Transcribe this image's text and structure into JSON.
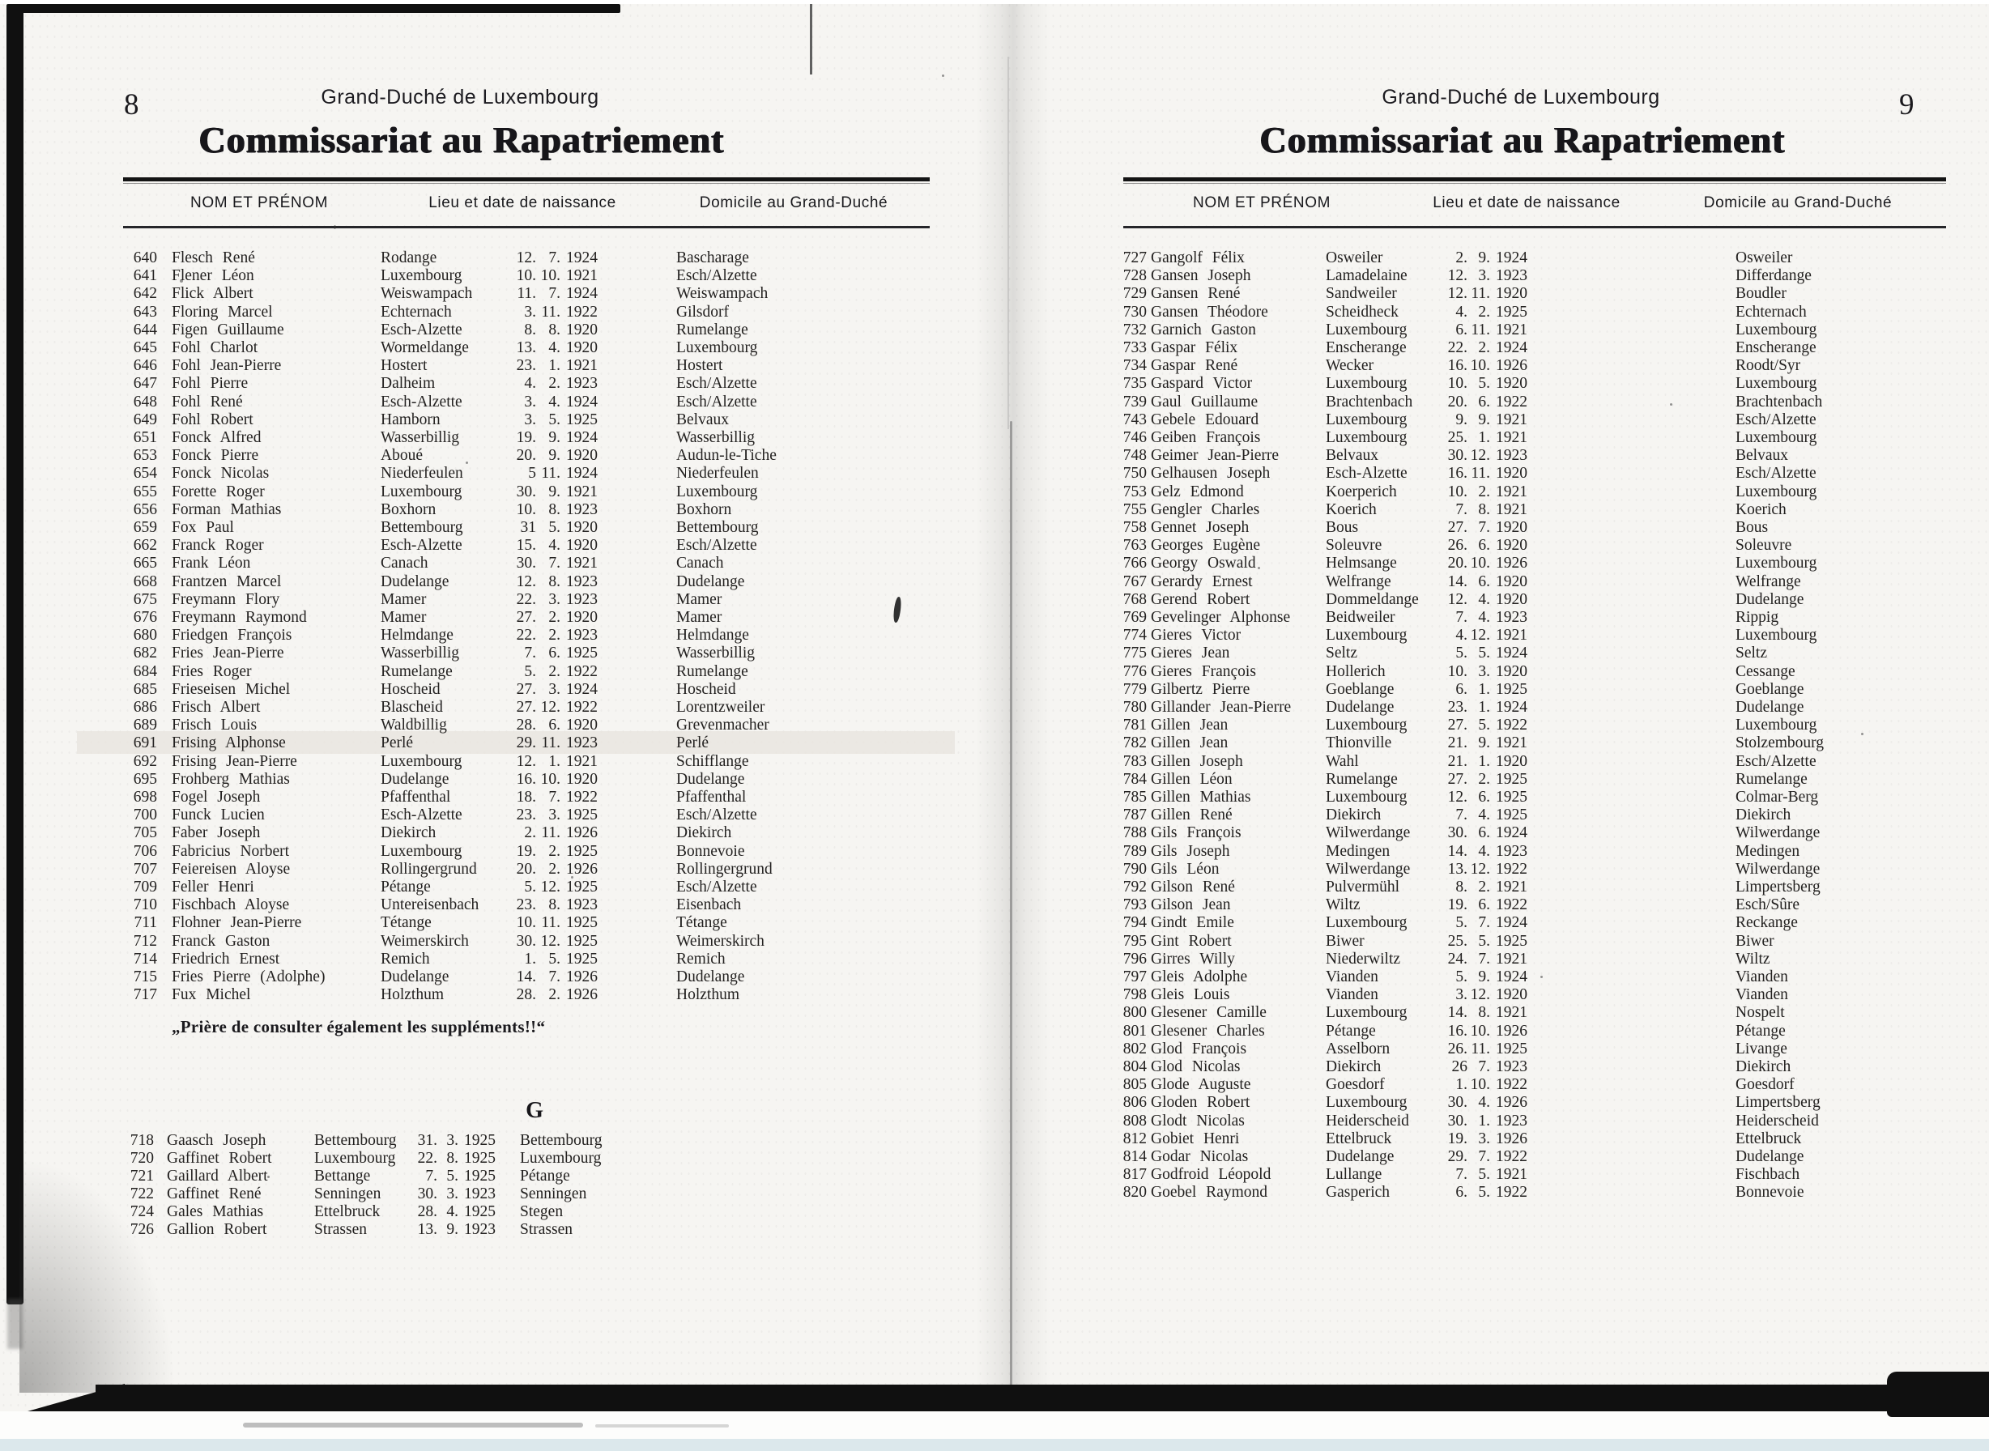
{
  "colors": {
    "paper": "#f6f5f2",
    "ink": "#232120",
    "bar_black": "#101010",
    "highlight": "#e8e5de",
    "edge_blue": "#dce8ec"
  },
  "left_page": {
    "page_number": "8",
    "header_small": "Grand-Duché de Luxembourg",
    "title": "Commissariat au Rapatriement",
    "columns": {
      "name": "NOM ET PRÉNOM",
      "birth": "Lieu et date de naissance",
      "domicile": "Domicile au Grand-Duché"
    },
    "rows": [
      {
        "no": "640",
        "name": "Flesch René",
        "place": "Rodange",
        "d": "12.",
        "m": "7.",
        "y": "1924",
        "dom": "Bascharage"
      },
      {
        "no": "641",
        "name": "Flener Léon",
        "place": "Luxembourg",
        "d": "10.",
        "m": "10.",
        "y": "1921",
        "dom": "Esch/Alzette"
      },
      {
        "no": "642",
        "name": "Flick Albert",
        "place": "Weiswampach",
        "d": "11.",
        "m": "7.",
        "y": "1924",
        "dom": "Weiswampach"
      },
      {
        "no": "643",
        "name": "Floring Marcel",
        "place": "Echternach",
        "d": "3.",
        "m": "11.",
        "y": "1922",
        "dom": "Gilsdorf"
      },
      {
        "no": "644",
        "name": "Figen Guillaume",
        "place": "Esch-Alzette",
        "d": "8.",
        "m": "8.",
        "y": "1920",
        "dom": "Rumelange"
      },
      {
        "no": "645",
        "name": "Fohl Charlot",
        "place": "Wormeldange",
        "d": "13.",
        "m": "4.",
        "y": "1920",
        "dom": "Luxembourg"
      },
      {
        "no": "646",
        "name": "Fohl Jean-Pierre",
        "place": "Hostert",
        "d": "23.",
        "m": "1.",
        "y": "1921",
        "dom": "Hostert"
      },
      {
        "no": "647",
        "name": "Fohl Pierre",
        "place": "Dalheim",
        "d": "4.",
        "m": "2.",
        "y": "1923",
        "dom": "Esch/Alzette"
      },
      {
        "no": "648",
        "name": "Fohl René",
        "place": "Esch-Alzette",
        "d": "3.",
        "m": "4.",
        "y": "1924",
        "dom": "Esch/Alzette"
      },
      {
        "no": "649",
        "name": "Fohl Robert",
        "place": "Hamborn",
        "d": "3.",
        "m": "5.",
        "y": "1925",
        "dom": "Belvaux"
      },
      {
        "no": "651",
        "name": "Fonck Alfred",
        "place": "Wasserbillig",
        "d": "19.",
        "m": "9.",
        "y": "1924",
        "dom": "Wasserbillig"
      },
      {
        "no": "653",
        "name": "Fonck Pierre",
        "place": "Aboué",
        "d": "20.",
        "m": "9.",
        "y": "1920",
        "dom": "Audun-le-Tiche"
      },
      {
        "no": "654",
        "name": "Fonck Nicolas",
        "place": "Niederfeulen",
        "d": "5",
        "m": "11.",
        "y": "1924",
        "dom": "Niederfeulen"
      },
      {
        "no": "655",
        "name": "Forette Roger",
        "place": "Luxembourg",
        "d": "30.",
        "m": "9.",
        "y": "1921",
        "dom": "Luxembourg"
      },
      {
        "no": "656",
        "name": "Forman Mathias",
        "place": "Boxhorn",
        "d": "10.",
        "m": "8.",
        "y": "1923",
        "dom": "Boxhorn"
      },
      {
        "no": "659",
        "name": "Fox Paul",
        "place": "Bettembourg",
        "d": "31",
        "m": "5.",
        "y": "1920",
        "dom": "Bettembourg"
      },
      {
        "no": "662",
        "name": "Franck Roger",
        "place": "Esch-Alzette",
        "d": "15.",
        "m": "4.",
        "y": "1920",
        "dom": "Esch/Alzette"
      },
      {
        "no": "665",
        "name": "Frank Léon",
        "place": "Canach",
        "d": "30.",
        "m": "7.",
        "y": "1921",
        "dom": "Canach"
      },
      {
        "no": "668",
        "name": "Frantzen Marcel",
        "place": "Dudelange",
        "d": "12.",
        "m": "8.",
        "y": "1923",
        "dom": "Dudelange"
      },
      {
        "no": "675",
        "name": "Freymann Flory",
        "place": "Mamer",
        "d": "22.",
        "m": "3.",
        "y": "1923",
        "dom": "Mamer"
      },
      {
        "no": "676",
        "name": "Freymann Raymond",
        "place": "Mamer",
        "d": "27.",
        "m": "2.",
        "y": "1920",
        "dom": "Mamer"
      },
      {
        "no": "680",
        "name": "Friedgen François",
        "place": "Helmdange",
        "d": "22.",
        "m": "2.",
        "y": "1923",
        "dom": "Helmdange"
      },
      {
        "no": "682",
        "name": "Fries Jean-Pierre",
        "place": "Wasserbillig",
        "d": "7.",
        "m": "6.",
        "y": "1925",
        "dom": "Wasserbillig"
      },
      {
        "no": "684",
        "name": "Fries Roger",
        "place": "Rumelange",
        "d": "5.",
        "m": "2.",
        "y": "1922",
        "dom": "Rumelange"
      },
      {
        "no": "685",
        "name": "Frieseisen Michel",
        "place": "Hoscheid",
        "d": "27.",
        "m": "3.",
        "y": "1924",
        "dom": "Hoscheid"
      },
      {
        "no": "686",
        "name": "Frisch Albert",
        "place": "Blascheid",
        "d": "27.",
        "m": "12.",
        "y": "1922",
        "dom": "Lorentzweiler"
      },
      {
        "no": "689",
        "name": "Frisch Louis",
        "place": "Waldbillig",
        "d": "28.",
        "m": "6.",
        "y": "1920",
        "dom": "Grevenmacher"
      },
      {
        "no": "691",
        "name": "Frising Alphonse",
        "place": "Perlé",
        "d": "29.",
        "m": "11.",
        "y": "1923",
        "dom": "Perlé"
      },
      {
        "no": "692",
        "name": "Frising Jean-Pierre",
        "place": "Luxembourg",
        "d": "12.",
        "m": "1.",
        "y": "1921",
        "dom": "Schifflange"
      },
      {
        "no": "695",
        "name": "Frohberg Mathias",
        "place": "Dudelange",
        "d": "16.",
        "m": "10.",
        "y": "1920",
        "dom": "Dudelange"
      },
      {
        "no": "698",
        "name": "Fogel Joseph",
        "place": "Pfaffenthal",
        "d": "18.",
        "m": "7.",
        "y": "1922",
        "dom": "Pfaffenthal"
      },
      {
        "no": "700",
        "name": "Funck Lucien",
        "place": "Esch-Alzette",
        "d": "23.",
        "m": "3.",
        "y": "1925",
        "dom": "Esch/Alzette"
      },
      {
        "no": "705",
        "name": "Faber Joseph",
        "place": "Diekirch",
        "d": "2.",
        "m": "11.",
        "y": "1926",
        "dom": "Diekirch"
      },
      {
        "no": "706",
        "name": "Fabricius Norbert",
        "place": "Luxembourg",
        "d": "19.",
        "m": "2.",
        "y": "1925",
        "dom": "Bonnevoie"
      },
      {
        "no": "707",
        "name": "Feiereisen Aloyse",
        "place": "Rollingergrund",
        "d": "20.",
        "m": "2.",
        "y": "1926",
        "dom": "Rollingergrund"
      },
      {
        "no": "709",
        "name": "Feller Henri",
        "place": "Pétange",
        "d": "5.",
        "m": "12.",
        "y": "1925",
        "dom": "Esch/Alzette"
      },
      {
        "no": "710",
        "name": "Fischbach Aloyse",
        "place": "Untereisenbach",
        "d": "23.",
        "m": "8.",
        "y": "1923",
        "dom": "Eisenbach"
      },
      {
        "no": "711",
        "name": "Flohner Jean-Pierre",
        "place": "Tétange",
        "d": "10.",
        "m": "11.",
        "y": "1925",
        "dom": "Tétange"
      },
      {
        "no": "712",
        "name": "Franck Gaston",
        "place": "Weimerskirch",
        "d": "30.",
        "m": "12.",
        "y": "1925",
        "dom": "Weimerskirch"
      },
      {
        "no": "714",
        "name": "Friedrich Ernest",
        "place": "Remich",
        "d": "1.",
        "m": "5.",
        "y": "1925",
        "dom": "Remich"
      },
      {
        "no": "715",
        "name": "Fries Pierre (Adolphe)",
        "place": "Dudelange",
        "d": "14.",
        "m": "7.",
        "y": "1926",
        "dom": "Dudelange"
      },
      {
        "no": "717",
        "name": "Fux Michel",
        "place": "Holzthum",
        "d": "28.",
        "m": "2.",
        "y": "1926",
        "dom": "Holzthum"
      }
    ],
    "note": "„Prière de consulter également les suppléments!!“",
    "section_letter": "G",
    "g_rows": [
      {
        "no": "718",
        "name": "Gaasch Joseph",
        "place": "Bettembourg",
        "d": "31.",
        "m": "3.",
        "y": "1925",
        "dom": "Bettembourg"
      },
      {
        "no": "720",
        "name": "Gaffinet Robert",
        "place": "Luxembourg",
        "d": "22.",
        "m": "8.",
        "y": "1925",
        "dom": "Luxembourg"
      },
      {
        "no": "721",
        "name": "Gaillard Albert",
        "place": "Bettange",
        "d": "7.",
        "m": "5.",
        "y": "1925",
        "dom": "Pétange"
      },
      {
        "no": "722",
        "name": "Gaffinet René",
        "place": "Senningen",
        "d": "30.",
        "m": "3.",
        "y": "1923",
        "dom": "Senningen"
      },
      {
        "no": "724",
        "name": "Gales Mathias",
        "place": "Ettelbruck",
        "d": "28.",
        "m": "4.",
        "y": "1925",
        "dom": "Stegen"
      },
      {
        "no": "726",
        "name": "Gallion Robert",
        "place": "Strassen",
        "d": "13.",
        "m": "9.",
        "y": "1923",
        "dom": "Strassen"
      }
    ]
  },
  "right_page": {
    "page_number": "9",
    "header_small": "Grand-Duché de Luxembourg",
    "title": "Commissariat au Rapatriement",
    "columns": {
      "name": "NOM ET PRÉNOM",
      "birth": "Lieu et date de naissance",
      "domicile": "Domicile au Grand-Duché"
    },
    "rows": [
      {
        "no": "727",
        "name": "Gangolf Félix",
        "place": "Osweiler",
        "d": "2.",
        "m": "9.",
        "y": "1924",
        "dom": "Osweiler"
      },
      {
        "no": "728",
        "name": "Gansen Joseph",
        "place": "Lamadelaine",
        "d": "12.",
        "m": "3.",
        "y": "1923",
        "dom": "Differdange"
      },
      {
        "no": "729",
        "name": "Gansen René",
        "place": "Sandweiler",
        "d": "12.",
        "m": "11.",
        "y": "1920",
        "dom": "Boudler"
      },
      {
        "no": "730",
        "name": "Gansen Théodore",
        "place": "Scheidheck",
        "d": "4.",
        "m": "2.",
        "y": "1925",
        "dom": "Echternach"
      },
      {
        "no": "732",
        "name": "Garnich Gaston",
        "place": "Luxembourg",
        "d": "6.",
        "m": "11.",
        "y": "1921",
        "dom": "Luxembourg"
      },
      {
        "no": "733",
        "name": "Gaspar Félix",
        "place": "Enscherange",
        "d": "22.",
        "m": "2.",
        "y": "1924",
        "dom": "Enscherange"
      },
      {
        "no": "734",
        "name": "Gaspar René",
        "place": "Wecker",
        "d": "16.",
        "m": "10.",
        "y": "1926",
        "dom": "Roodt/Syr"
      },
      {
        "no": "735",
        "name": "Gaspard Victor",
        "place": "Luxembourg",
        "d": "10.",
        "m": "5.",
        "y": "1920",
        "dom": "Luxembourg"
      },
      {
        "no": "739",
        "name": "Gaul Guillaume",
        "place": "Brachtenbach",
        "d": "20.",
        "m": "6.",
        "y": "1922",
        "dom": "Brachtenbach"
      },
      {
        "no": "743",
        "name": "Gebele Edouard",
        "place": "Luxembourg",
        "d": "9.",
        "m": "9.",
        "y": "1921",
        "dom": "Esch/Alzette"
      },
      {
        "no": "746",
        "name": "Geiben François",
        "place": "Luxembourg",
        "d": "25.",
        "m": "1.",
        "y": "1921",
        "dom": "Luxembourg"
      },
      {
        "no": "748",
        "name": "Geimer Jean-Pierre",
        "place": "Belvaux",
        "d": "30.",
        "m": "12.",
        "y": "1923",
        "dom": "Belvaux"
      },
      {
        "no": "750",
        "name": "Gelhausen Joseph",
        "place": "Esch-Alzette",
        "d": "16.",
        "m": "11.",
        "y": "1920",
        "dom": "Esch/Alzette"
      },
      {
        "no": "753",
        "name": "Gelz Edmond",
        "place": "Koerperich",
        "d": "10.",
        "m": "2.",
        "y": "1921",
        "dom": "Luxembourg"
      },
      {
        "no": "755",
        "name": "Gengler Charles",
        "place": "Koerich",
        "d": "7.",
        "m": "8.",
        "y": "1921",
        "dom": "Koerich"
      },
      {
        "no": "758",
        "name": "Gennet Joseph",
        "place": "Bous",
        "d": "27.",
        "m": "7.",
        "y": "1920",
        "dom": "Bous"
      },
      {
        "no": "763",
        "name": "Georges Eugène",
        "place": "Soleuvre",
        "d": "26.",
        "m": "6.",
        "y": "1920",
        "dom": "Soleuvre"
      },
      {
        "no": "766",
        "name": "Georgy Oswald",
        "place": "Helmsange",
        "d": "20.",
        "m": "10.",
        "y": "1926",
        "dom": "Luxembourg"
      },
      {
        "no": "767",
        "name": "Gerardy Ernest",
        "place": "Welfrange",
        "d": "14.",
        "m": "6.",
        "y": "1920",
        "dom": "Welfrange"
      },
      {
        "no": "768",
        "name": "Gerend Robert",
        "place": "Dommeldange",
        "d": "12.",
        "m": "4.",
        "y": "1920",
        "dom": "Dudelange"
      },
      {
        "no": "769",
        "name": "Gevelinger Alphonse",
        "place": "Beidweiler",
        "d": "7.",
        "m": "4.",
        "y": "1923",
        "dom": "Rippig"
      },
      {
        "no": "774",
        "name": "Gieres Victor",
        "place": "Luxembourg",
        "d": "4.",
        "m": "12.",
        "y": "1921",
        "dom": "Luxembourg"
      },
      {
        "no": "775",
        "name": "Gieres Jean",
        "place": "Seltz",
        "d": "5.",
        "m": "5.",
        "y": "1924",
        "dom": "Seltz"
      },
      {
        "no": "776",
        "name": "Gieres François",
        "place": "Hollerich",
        "d": "10.",
        "m": "3.",
        "y": "1920",
        "dom": "Cessange"
      },
      {
        "no": "779",
        "name": "Gilbertz Pierre",
        "place": "Goeblange",
        "d": "6.",
        "m": "1.",
        "y": "1925",
        "dom": "Goeblange"
      },
      {
        "no": "780",
        "name": "Gillander Jean-Pierre",
        "place": "Dudelange",
        "d": "23.",
        "m": "1.",
        "y": "1924",
        "dom": "Dudelange"
      },
      {
        "no": "781",
        "name": "Gillen Jean",
        "place": "Luxembourg",
        "d": "27.",
        "m": "5.",
        "y": "1922",
        "dom": "Luxembourg"
      },
      {
        "no": "782",
        "name": "Gillen Jean",
        "place": "Thionville",
        "d": "21.",
        "m": "9.",
        "y": "1921",
        "dom": "Stolzembourg"
      },
      {
        "no": "783",
        "name": "Gillen Joseph",
        "place": "Wahl",
        "d": "21.",
        "m": "1.",
        "y": "1920",
        "dom": "Esch/Alzette"
      },
      {
        "no": "784",
        "name": "Gillen Léon",
        "place": "Rumelange",
        "d": "27.",
        "m": "2.",
        "y": "1925",
        "dom": "Rumelange"
      },
      {
        "no": "785",
        "name": "Gillen Mathias",
        "place": "Luxembourg",
        "d": "12.",
        "m": "6.",
        "y": "1925",
        "dom": "Colmar-Berg"
      },
      {
        "no": "787",
        "name": "Gillen René",
        "place": "Diekirch",
        "d": "7.",
        "m": "4.",
        "y": "1925",
        "dom": "Diekirch"
      },
      {
        "no": "788",
        "name": "Gils François",
        "place": "Wilwerdange",
        "d": "30.",
        "m": "6.",
        "y": "1924",
        "dom": "Wilwerdange"
      },
      {
        "no": "789",
        "name": "Gils Joseph",
        "place": "Medingen",
        "d": "14.",
        "m": "4.",
        "y": "1923",
        "dom": "Medingen"
      },
      {
        "no": "790",
        "name": "Gils Léon",
        "place": "Wilwerdange",
        "d": "13.",
        "m": "12.",
        "y": "1922",
        "dom": "Wilwerdange"
      },
      {
        "no": "792",
        "name": "Gilson René",
        "place": "Pulvermühl",
        "d": "8.",
        "m": "2.",
        "y": "1921",
        "dom": "Limpertsberg"
      },
      {
        "no": "793",
        "name": "Gilson Jean",
        "place": "Wiltz",
        "d": "19.",
        "m": "6.",
        "y": "1922",
        "dom": "Esch/Sûre"
      },
      {
        "no": "794",
        "name": "Gindt Emile",
        "place": "Luxembourg",
        "d": "5.",
        "m": "7.",
        "y": "1924",
        "dom": "Reckange"
      },
      {
        "no": "795",
        "name": "Gint Robert",
        "place": "Biwer",
        "d": "25.",
        "m": "5.",
        "y": "1925",
        "dom": "Biwer"
      },
      {
        "no": "796",
        "name": "Girres Willy",
        "place": "Niederwiltz",
        "d": "24.",
        "m": "7.",
        "y": "1921",
        "dom": "Wiltz"
      },
      {
        "no": "797",
        "name": "Gleis Adolphe",
        "place": "Vianden",
        "d": "5.",
        "m": "9.",
        "y": "1924",
        "dom": "Vianden"
      },
      {
        "no": "798",
        "name": "Gleis Louis",
        "place": "Vianden",
        "d": "3.",
        "m": "12.",
        "y": "1920",
        "dom": "Vianden"
      },
      {
        "no": "800",
        "name": "Glesener Camille",
        "place": "Luxembourg",
        "d": "14.",
        "m": "8.",
        "y": "1921",
        "dom": "Nospelt"
      },
      {
        "no": "801",
        "name": "Glesener Charles",
        "place": "Pétange",
        "d": "16.",
        "m": "10.",
        "y": "1926",
        "dom": "Pétange"
      },
      {
        "no": "802",
        "name": "Glod François",
        "place": "Asselborn",
        "d": "26.",
        "m": "11.",
        "y": "1925",
        "dom": "Livange"
      },
      {
        "no": "804",
        "name": "Glod Nicolas",
        "place": "Diekirch",
        "d": "26",
        "m": "7.",
        "y": "1923",
        "dom": "Diekirch"
      },
      {
        "no": "805",
        "name": "Glode Auguste",
        "place": "Goesdorf",
        "d": "1.",
        "m": "10.",
        "y": "1922",
        "dom": "Goesdorf"
      },
      {
        "no": "806",
        "name": "Gloden Robert",
        "place": "Luxembourg",
        "d": "30.",
        "m": "4.",
        "y": "1926",
        "dom": "Limpertsberg"
      },
      {
        "no": "808",
        "name": "Glodt Nicolas",
        "place": "Heiderscheid",
        "d": "30.",
        "m": "1.",
        "y": "1923",
        "dom": "Heiderscheid"
      },
      {
        "no": "812",
        "name": "Gobiet Henri",
        "place": "Ettelbruck",
        "d": "19.",
        "m": "3.",
        "y": "1926",
        "dom": "Ettelbruck"
      },
      {
        "no": "814",
        "name": "Godar Nicolas",
        "place": "Dudelange",
        "d": "29.",
        "m": "7.",
        "y": "1922",
        "dom": "Dudelange"
      },
      {
        "no": "817",
        "name": "Godfroid Léopold",
        "place": "Lullange",
        "d": "7.",
        "m": "5.",
        "y": "1921",
        "dom": "Fischbach"
      },
      {
        "no": "820",
        "name": "Goebel Raymond",
        "place": "Gasperich",
        "d": "6.",
        "m": "5.",
        "y": "1922",
        "dom": "Bonnevoie"
      }
    ]
  }
}
